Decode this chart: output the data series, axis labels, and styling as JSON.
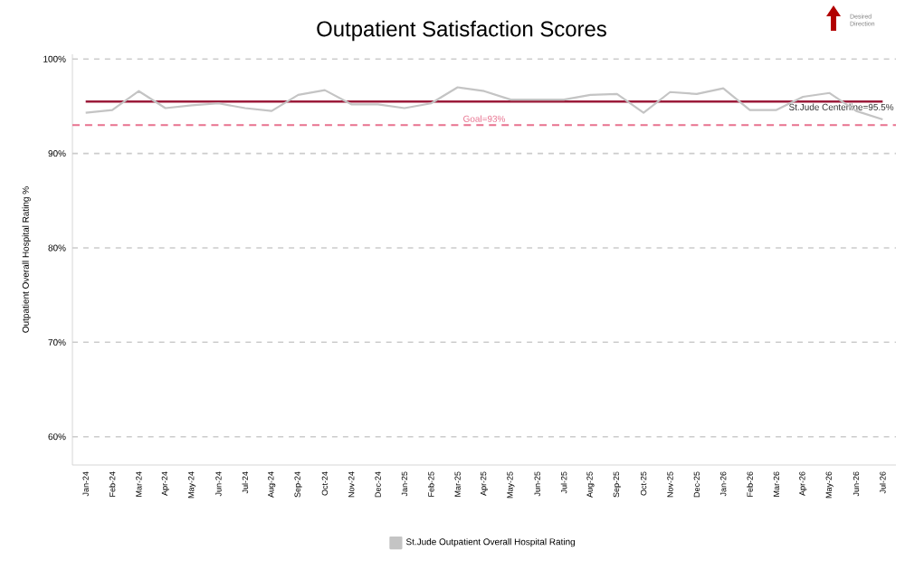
{
  "chart_data": {
    "type": "line",
    "title": "Outpatient Satisfaction Scores",
    "ylabel": "Outpatient Overall Hospital Rating  %",
    "categories": [
      "Jan-24",
      "Feb-24",
      "Mar-24",
      "Apr-24",
      "May-24",
      "Jun-24",
      "Jul-24",
      "Aug-24",
      "Sep-24",
      "Oct-24",
      "Nov-24",
      "Dec-24",
      "Jan-25",
      "Feb-25",
      "Mar-25",
      "Apr-25",
      "May-25",
      "Jun-25",
      "Jul-25",
      "Aug-25",
      "Sep-25",
      "Oct-25",
      "Nov-25",
      "Dec-25",
      "Jan-26",
      "Feb-26",
      "Mar-26",
      "Apr-26",
      "May-26",
      "Jun-26",
      "Jul-26"
    ],
    "series": [
      {
        "name": "St.Jude Outpatient Overall Hospital Rating",
        "color": "#c4c4c4",
        "values": [
          94.3,
          94.6,
          96.6,
          94.8,
          95.1,
          95.3,
          94.8,
          94.5,
          96.2,
          96.7,
          95.2,
          95.2,
          94.8,
          95.3,
          97.0,
          96.6,
          95.7,
          95.7,
          95.7,
          96.2,
          96.3,
          94.3,
          96.5,
          96.3,
          96.9,
          94.6,
          94.6,
          96.0,
          96.4,
          94.5,
          93.6
        ]
      }
    ],
    "ylim": [
      57,
      100.5
    ],
    "yticks": [
      {
        "value": 60,
        "label": "60%"
      },
      {
        "value": 70,
        "label": "70%"
      },
      {
        "value": 80,
        "label": "80%"
      },
      {
        "value": 90,
        "label": "90%"
      },
      {
        "value": 100,
        "label": "100%"
      }
    ],
    "grid": "y",
    "legend": "bottom",
    "marker": "none",
    "line_style": "solid",
    "ref_lines": [
      {
        "axis": "y",
        "value": 95.5,
        "label": "St.Jude Centerline=95.5%",
        "color": "#9b1b3a",
        "line_style": "solid"
      },
      {
        "axis": "y",
        "value": 93,
        "label": "Goal=93%",
        "color": "#e8728f",
        "line_style": "dashed"
      }
    ],
    "annotations": [
      "Desired Direction"
    ]
  }
}
